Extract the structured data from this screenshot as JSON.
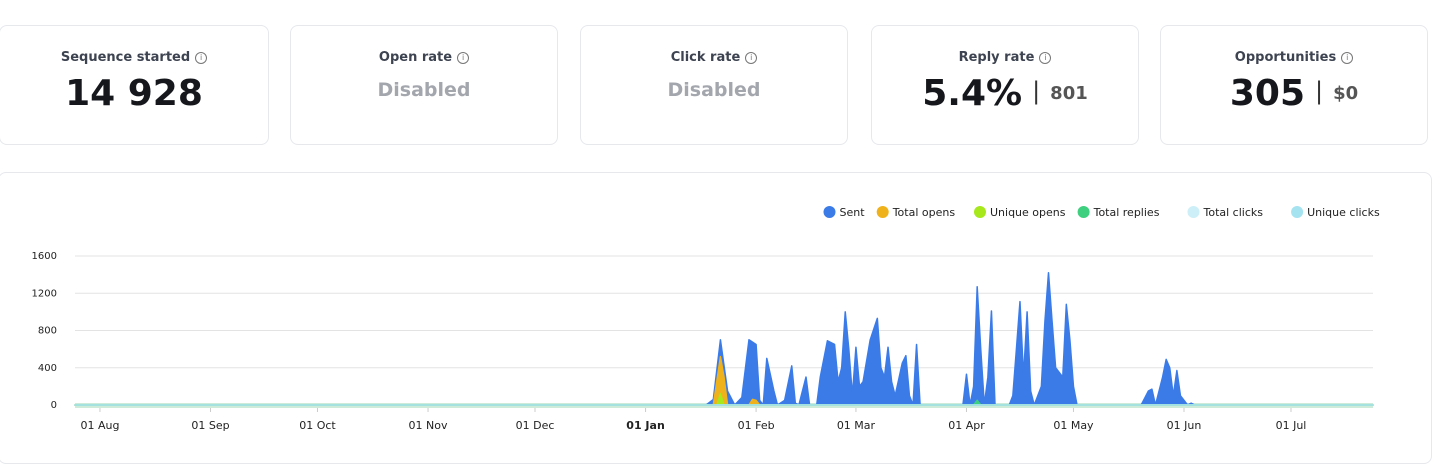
{
  "cards": [
    {
      "title": "Sequence started",
      "value": "14 928"
    },
    {
      "title": "Open rate",
      "value": "Disabled"
    },
    {
      "title": "Click rate",
      "value": "Disabled"
    },
    {
      "title": "Reply rate",
      "value": "5.4%",
      "secondary": "801"
    },
    {
      "title": "Opportunities",
      "value": "305",
      "secondary": "$0"
    }
  ],
  "chart_data": {
    "type": "area",
    "xlim": [
      -7,
      357
    ],
    "xticks": [
      {
        "value": 0,
        "label": "01 Aug"
      },
      {
        "value": 31,
        "label": "01 Sep"
      },
      {
        "value": 61,
        "label": "01 Oct"
      },
      {
        "value": 92,
        "label": "01 Nov"
      },
      {
        "value": 122,
        "label": "01 Dec"
      },
      {
        "value": 153,
        "label": "01 Jan"
      },
      {
        "value": 184,
        "label": "01 Feb"
      },
      {
        "value": 212,
        "label": "01 Mar"
      },
      {
        "value": 243,
        "label": "01 Apr"
      },
      {
        "value": 273,
        "label": "01 May"
      },
      {
        "value": 304,
        "label": "01 Jun"
      },
      {
        "value": 334,
        "label": "01 Jul"
      }
    ],
    "emphasized_xtick": 5,
    "ylim": [
      0,
      1600
    ],
    "yticks": [
      0,
      400,
      800,
      1200,
      1600
    ],
    "grid": true,
    "legend": "top-right",
    "series": [
      {
        "name": "Sent",
        "color": "#3b7be8",
        "x": [
          -7,
          170,
          172,
          174,
          176,
          178,
          180,
          182,
          184,
          185,
          186,
          187,
          189,
          190,
          192,
          194,
          195,
          196,
          198,
          199,
          201,
          202,
          204,
          206,
          207,
          208,
          209,
          210,
          211,
          212,
          213,
          214,
          216,
          218,
          219,
          220,
          221,
          222,
          223,
          225,
          226,
          227,
          228,
          229,
          230,
          242,
          243,
          244,
          245,
          246,
          247,
          248,
          249,
          250,
          251,
          255,
          256,
          257,
          258,
          259,
          260,
          261,
          262,
          264,
          265,
          266,
          267,
          268,
          270,
          271,
          272,
          273,
          274,
          292,
          294,
          295,
          296,
          298,
          299,
          300,
          301,
          302,
          303,
          305,
          306,
          307,
          357
        ],
        "values": [
          0,
          0,
          60,
          700,
          150,
          0,
          80,
          700,
          650,
          50,
          0,
          500,
          150,
          0,
          50,
          420,
          20,
          0,
          300,
          0,
          0,
          300,
          690,
          650,
          250,
          400,
          1000,
          600,
          100,
          620,
          200,
          250,
          700,
          930,
          400,
          300,
          620,
          250,
          100,
          450,
          530,
          100,
          0,
          650,
          0,
          0,
          330,
          0,
          200,
          1270,
          600,
          0,
          300,
          1010,
          0,
          0,
          100,
          600,
          1110,
          300,
          1000,
          150,
          0,
          200,
          900,
          1420,
          900,
          400,
          300,
          1080,
          700,
          200,
          0,
          0,
          150,
          170,
          0,
          300,
          490,
          400,
          100,
          370,
          100,
          0,
          20,
          0,
          0
        ]
      },
      {
        "name": "Total opens",
        "color": "#f0b21a",
        "x": [
          -7,
          172,
          174,
          175,
          176,
          182,
          183,
          184,
          185,
          357
        ],
        "values": [
          0,
          0,
          520,
          300,
          0,
          0,
          60,
          50,
          0,
          0
        ]
      },
      {
        "name": "Unique opens",
        "color": "#a6e81c",
        "x": [
          -7,
          173,
          174,
          175,
          357
        ],
        "values": [
          0,
          0,
          120,
          0,
          0
        ]
      },
      {
        "name": "Total replies",
        "color": "#3ed07f",
        "x": [
          -7,
          245,
          246,
          247,
          357
        ],
        "values": [
          0,
          0,
          50,
          0,
          0
        ]
      },
      {
        "name": "Total clicks",
        "color": "#cdeff7",
        "x": [
          -7,
          357
        ],
        "values": [
          0,
          0
        ]
      },
      {
        "name": "Unique clicks",
        "color": "#a5e3f0",
        "x": [
          -7,
          357
        ],
        "values": [
          0,
          0
        ]
      }
    ]
  }
}
